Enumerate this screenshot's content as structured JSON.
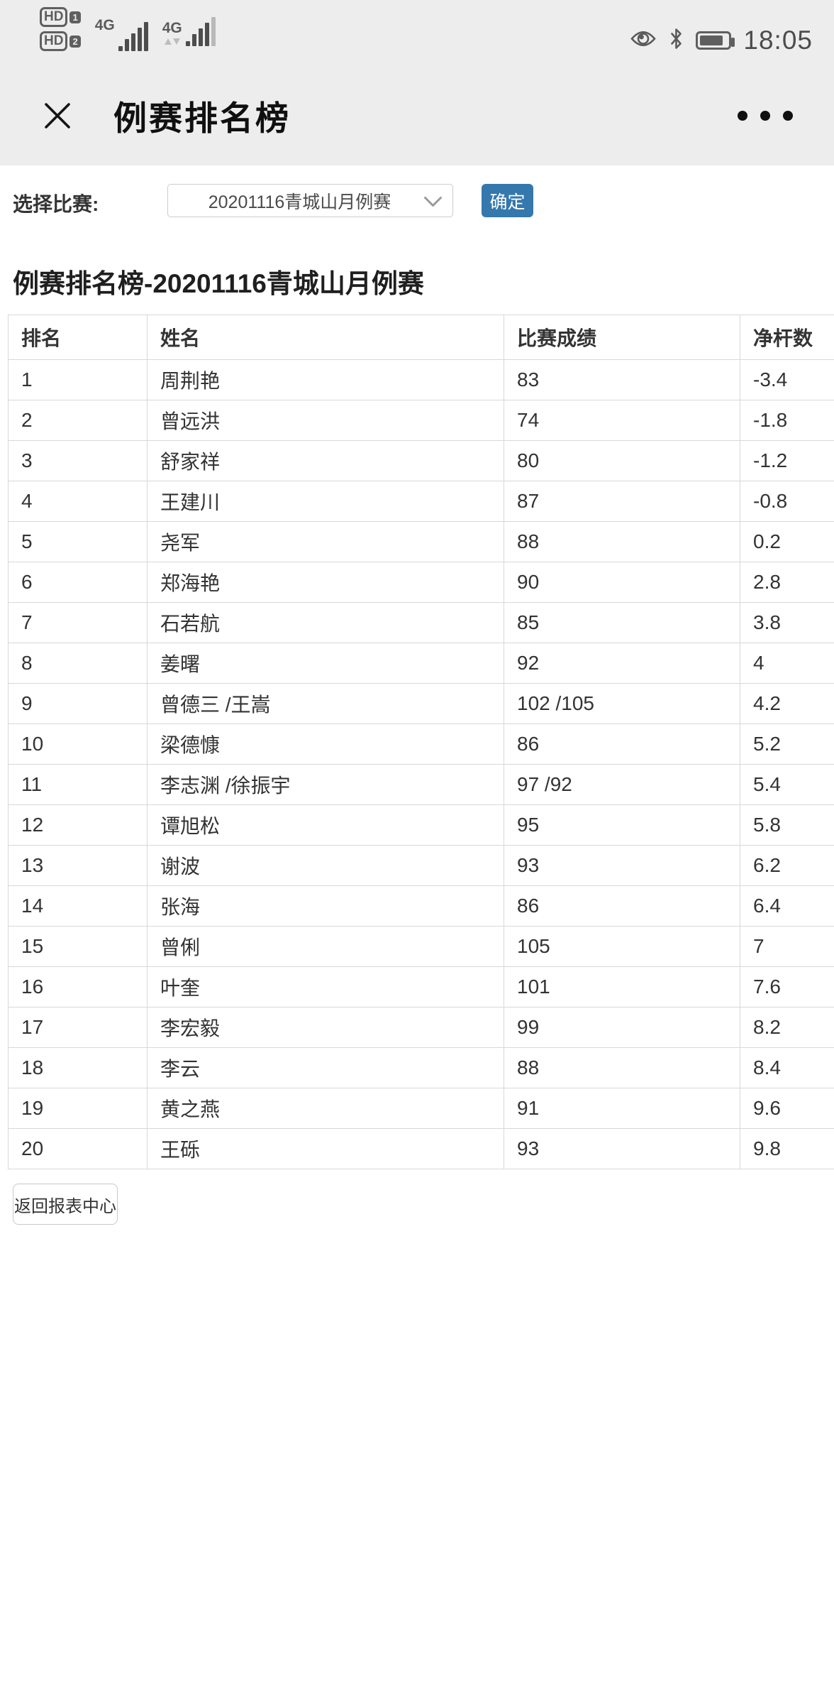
{
  "colors": {
    "topbar_bg": "#ededed",
    "accent_blue": "#3478ad",
    "table_border": "#d8d8d8",
    "text": "#333333"
  },
  "status_bar": {
    "time": "18:05",
    "sim1_label": "HD",
    "sim1_index": "1",
    "sim2_label": "HD",
    "sim2_index": "2",
    "network1": "4G",
    "network2": "4G",
    "icons": [
      "signal-bars-icon",
      "signal-bars-icon",
      "eye-icon",
      "bluetooth-icon",
      "battery-icon"
    ]
  },
  "navbar": {
    "title": "例赛排名榜",
    "icons": [
      "close-icon",
      "more-menu-icon"
    ]
  },
  "filter": {
    "label": "选择比赛:",
    "selected_option": "20201116青城山月例赛",
    "confirm_label": "确定"
  },
  "page": {
    "title": "例赛排名榜-20201116青城山月例赛"
  },
  "table": {
    "columns": [
      "排名",
      "姓名",
      "比赛成绩",
      "净杆数"
    ],
    "rows": [
      [
        "1",
        "周荆艳",
        "83",
        "-3.4"
      ],
      [
        "2",
        "曾远洪",
        "74",
        "-1.8"
      ],
      [
        "3",
        "舒家祥",
        "80",
        "-1.2"
      ],
      [
        "4",
        "王建川",
        "87",
        "-0.8"
      ],
      [
        "5",
        "尧军",
        "88",
        "0.2"
      ],
      [
        "6",
        "郑海艳",
        "90",
        "2.8"
      ],
      [
        "7",
        "石若航",
        "85",
        "3.8"
      ],
      [
        "8",
        "姜曙",
        "92",
        "4"
      ],
      [
        "9",
        "曾德三 /王嵩",
        "102 /105",
        "4.2"
      ],
      [
        "10",
        "梁德慷",
        "86",
        "5.2"
      ],
      [
        "11",
        "李志渊 /徐振宇",
        "97 /92",
        "5.4"
      ],
      [
        "12",
        "谭旭松",
        "95",
        "5.8"
      ],
      [
        "13",
        "谢波",
        "93",
        "6.2"
      ],
      [
        "14",
        "张海",
        "86",
        "6.4"
      ],
      [
        "15",
        "曾俐",
        "105",
        "7"
      ],
      [
        "16",
        "叶奎",
        "101",
        "7.6"
      ],
      [
        "17",
        "李宏毅",
        "99",
        "8.2"
      ],
      [
        "18",
        "李云",
        "88",
        "8.4"
      ],
      [
        "19",
        "黄之燕",
        "91",
        "9.6"
      ],
      [
        "20",
        "王砾",
        "93",
        "9.8"
      ]
    ]
  },
  "footer": {
    "back_label": "返回报表中心"
  }
}
